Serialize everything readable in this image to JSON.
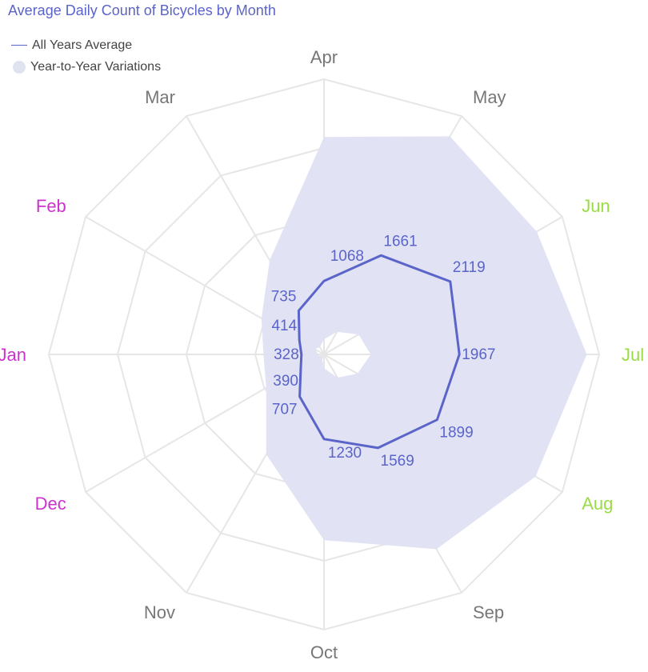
{
  "chart_data": {
    "type": "radar",
    "title": "Average Daily Count of Bicycles by Month",
    "legend": {
      "placement": "top-left",
      "entries": [
        "All Years Average",
        "Year-to-Year Variations"
      ]
    },
    "categories": [
      "Apr",
      "May",
      "Jun",
      "Jul",
      "Aug",
      "Sep",
      "Oct",
      "Nov",
      "Dec",
      "Jan",
      "Feb",
      "Mar"
    ],
    "category_colors": [
      "#777777",
      "#777777",
      "#99dd44",
      "#99dd44",
      "#99dd44",
      "#777777",
      "#777777",
      "#777777",
      "#cc33cc",
      "#cc33cc",
      "#cc33cc",
      "#777777"
    ],
    "radial_range": [
      0,
      4000
    ],
    "grid": true,
    "series": [
      {
        "name": "All Years Average",
        "color": "#5b64c8",
        "values": [
          1068,
          1661,
          2119,
          1967,
          1899,
          1569,
          1230,
          707,
          390,
          328,
          414,
          735
        ],
        "labels": [
          "1068",
          "1661",
          "2119",
          "1967",
          "1899",
          "1569",
          "1230",
          "707",
          "390",
          "328",
          "414",
          "735"
        ]
      },
      {
        "name": "Year-to-Year Variations",
        "color": "#dfe1f4",
        "min": [
          220,
          380,
          580,
          680,
          560,
          390,
          200,
          60,
          60,
          80,
          160,
          120
        ],
        "max": [
          3160,
          3660,
          3570,
          3820,
          3550,
          3270,
          2700,
          1680,
          970,
          880,
          1050,
          1580
        ]
      }
    ]
  }
}
